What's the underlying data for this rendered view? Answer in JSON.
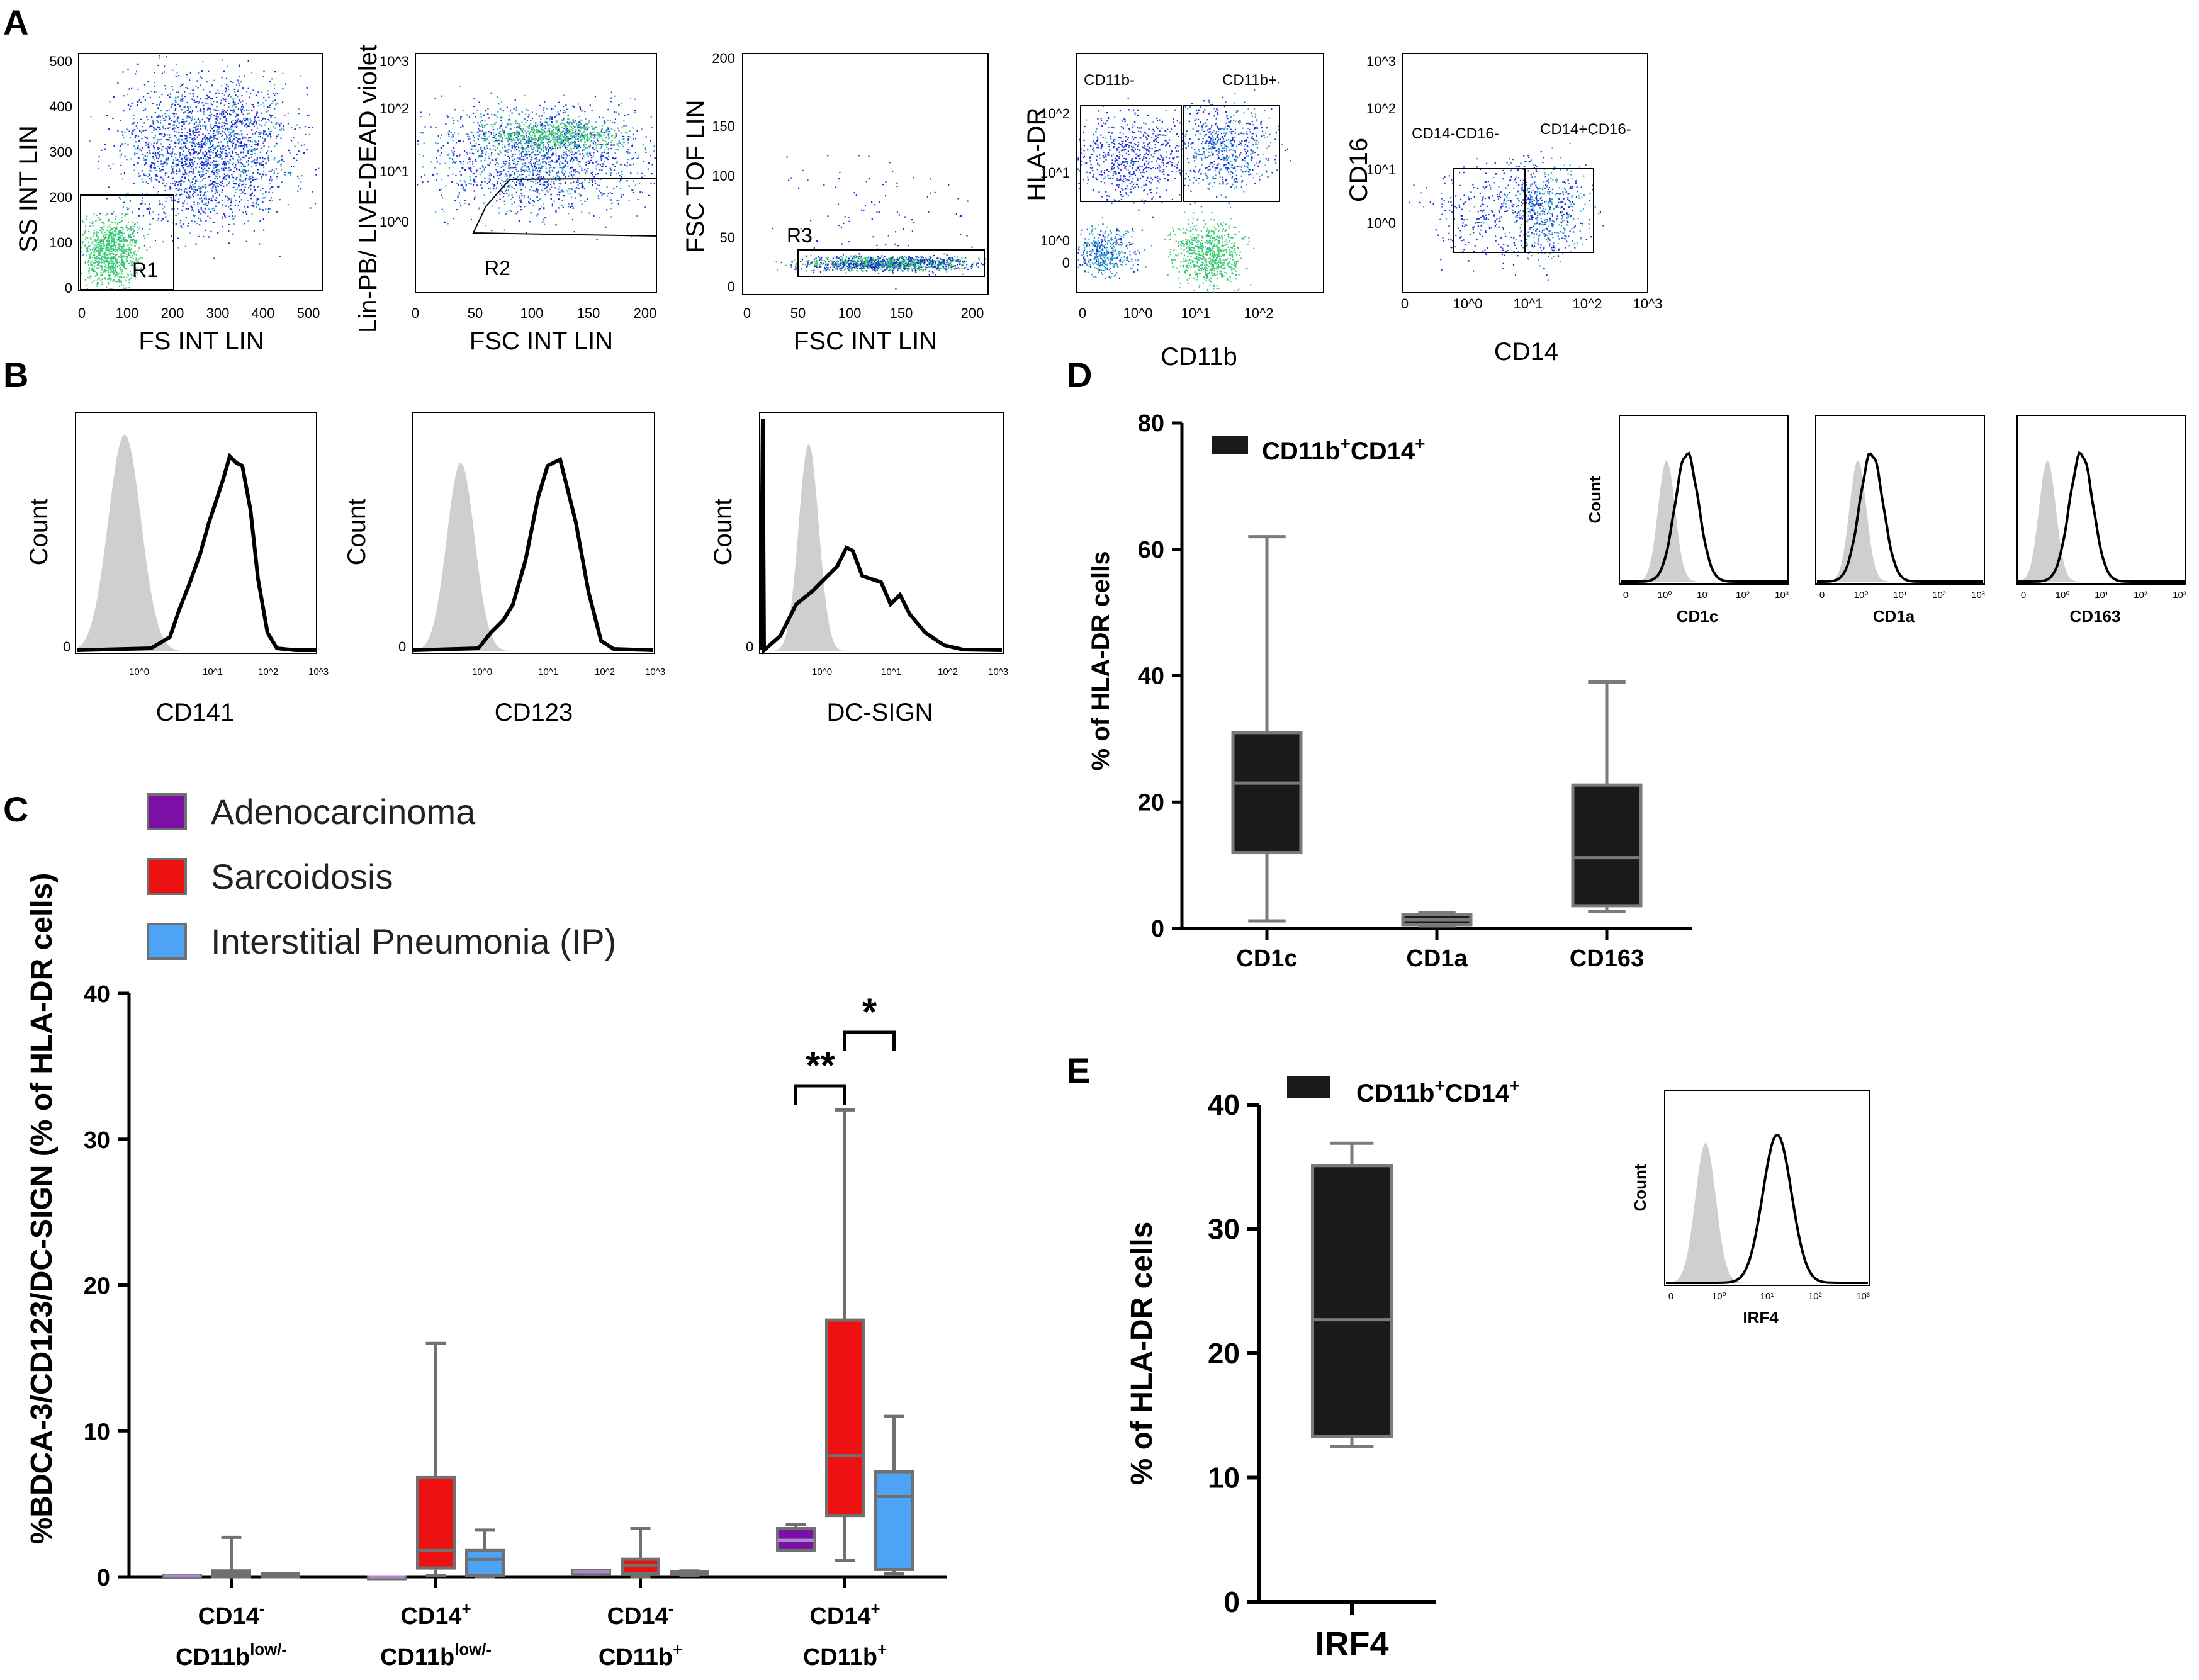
{
  "panel_labels": {
    "a": "A",
    "b": "B",
    "c": "C",
    "d": "D",
    "e": "E"
  },
  "panel_a": {
    "plots": [
      {
        "ylabel": "SS INT LIN",
        "xlabel": "FS INT LIN",
        "xticks": [
          "0",
          "100",
          "200",
          "300",
          "400",
          "500"
        ],
        "yticks": [
          "0",
          "100",
          "200",
          "300",
          "400",
          "500"
        ],
        "gates": [
          "R1"
        ]
      },
      {
        "ylabel": "Lin-PB/ LIVE-DEAD violet",
        "xlabel": "FSC INT LIN",
        "xticks": [
          "0",
          "50",
          "100",
          "150",
          "200"
        ],
        "yticks": [
          "10^3",
          "10^2",
          "10^1",
          "10^0"
        ],
        "gates": [
          "R2"
        ]
      },
      {
        "ylabel": "FSC TOF LIN",
        "xlabel": "FSC INT LIN",
        "xticks": [
          "0",
          "50",
          "100",
          "150",
          "200"
        ],
        "yticks": [
          "200",
          "150",
          "100",
          "50",
          "0"
        ],
        "gates": [
          "R3"
        ]
      },
      {
        "ylabel": "HLA-DR",
        "xlabel": "CD11b",
        "xticks": [
          "0",
          "10^0",
          "10^1",
          "10^2"
        ],
        "yticks": [
          "10^2",
          "10^1",
          "10^0",
          "0"
        ],
        "gates": [
          "CD11b-",
          "CD11b+"
        ]
      },
      {
        "ylabel": "CD16",
        "xlabel": "CD14",
        "xticks": [
          "0",
          "10^0",
          "10^1",
          "10^2",
          "10^3"
        ],
        "yticks": [
          "10^3",
          "10^2",
          "10^1",
          "10^0"
        ],
        "gates": [
          "CD14-CD16-",
          "CD14+CD16-"
        ]
      }
    ]
  },
  "panel_b": {
    "ylabel": "Count",
    "zero_tick": "0",
    "xticks": [
      "10^0",
      "10^1",
      "10^2",
      "10^3"
    ],
    "plots": [
      {
        "marker": "CD141"
      },
      {
        "marker": "CD123"
      },
      {
        "marker": "DC-SIGN"
      }
    ]
  },
  "chart_data": [
    {
      "panel": "C",
      "type": "box",
      "ylabel": "%BDCA-3/CD123/DC-SIGN (% of HLA-DR cells)",
      "ylim": [
        0,
        40
      ],
      "yticks": [
        "0",
        "10",
        "20",
        "30",
        "40"
      ],
      "legend": [
        {
          "name": "Adenocarcinoma",
          "color": "#7b0fa6"
        },
        {
          "name": "Sarcoidosis",
          "color": "#ee1111"
        },
        {
          "name": "Interstitial Pneumonia (IP)",
          "color": "#4da3f5"
        }
      ],
      "categories": [
        {
          "line1": "CD14",
          "sup1": "-",
          "line2": "CD11b",
          "sup2": "low/-"
        },
        {
          "line1": "CD14",
          "sup1": "+",
          "line2": "CD11b",
          "sup2": "low/-"
        },
        {
          "line1": "CD14",
          "sup1": "-",
          "line2": "CD11b",
          "sup2": "+"
        },
        {
          "line1": "CD14",
          "sup1": "+",
          "line2": "CD11b",
          "sup2": "+"
        }
      ],
      "boxes": [
        {
          "cat": 0,
          "group": "Adenocarcinoma",
          "min": 0,
          "q1": 0,
          "median": 0.05,
          "q3": 0.1,
          "max": 0.1
        },
        {
          "cat": 0,
          "group": "Sarcoidosis",
          "min": 0,
          "q1": 0,
          "median": 0.2,
          "q3": 0.4,
          "max": 2.7
        },
        {
          "cat": 0,
          "group": "Interstitial Pneumonia (IP)",
          "min": 0,
          "q1": 0,
          "median": 0.1,
          "q3": 0.2,
          "max": 0.2
        },
        {
          "cat": 1,
          "group": "Adenocarcinoma",
          "min": 0,
          "q1": 0,
          "median": 0,
          "q3": 0,
          "max": 0
        },
        {
          "cat": 1,
          "group": "Sarcoidosis",
          "min": 0.1,
          "q1": 0.6,
          "median": 1.8,
          "q3": 6.8,
          "max": 16
        },
        {
          "cat": 1,
          "group": "Interstitial Pneumonia (IP)",
          "min": 0,
          "q1": 0.1,
          "median": 1.2,
          "q3": 1.8,
          "max": 3.2
        },
        {
          "cat": 2,
          "group": "Adenocarcinoma",
          "min": 0.2,
          "q1": 0.2,
          "median": 0.35,
          "q3": 0.45,
          "max": 0.45
        },
        {
          "cat": 2,
          "group": "Sarcoidosis",
          "min": 0,
          "q1": 0.2,
          "median": 0.8,
          "q3": 1.2,
          "max": 3.3
        },
        {
          "cat": 2,
          "group": "Interstitial Pneumonia (IP)",
          "min": 0.1,
          "q1": 0.2,
          "median": 0.3,
          "q3": 0.35,
          "max": 0.4
        },
        {
          "cat": 3,
          "group": "Adenocarcinoma",
          "min": 1.8,
          "q1": 1.8,
          "median": 2.5,
          "q3": 3.3,
          "max": 3.6
        },
        {
          "cat": 3,
          "group": "Sarcoidosis",
          "min": 1.1,
          "q1": 4.2,
          "median": 8.3,
          "q3": 17.6,
          "max": 32
        },
        {
          "cat": 3,
          "group": "Interstitial Pneumonia (IP)",
          "min": 0.2,
          "q1": 0.5,
          "median": 5.5,
          "q3": 7.2,
          "max": 11
        }
      ],
      "significance": [
        {
          "label": "**",
          "between": [
            "Adenocarcinoma",
            "Sarcoidosis"
          ],
          "cat": 3
        },
        {
          "label": "*",
          "between": [
            "Sarcoidosis",
            "Interstitial Pneumonia (IP)"
          ],
          "cat": 3
        }
      ]
    },
    {
      "panel": "D",
      "type": "box",
      "ylabel": "% of HLA-DR cells",
      "ylim": [
        0,
        80
      ],
      "yticks": [
        "0",
        "20",
        "40",
        "60",
        "80"
      ],
      "legend": {
        "base": "CD11b",
        "sup1": "+",
        "mid": "CD14",
        "sup2": "+",
        "color": "#1a1a1a"
      },
      "categories": [
        "CD1c",
        "CD1a",
        "CD163"
      ],
      "boxes": [
        {
          "cat": 0,
          "min": 1.2,
          "q1": 12,
          "median": 23,
          "q3": 31,
          "max": 62
        },
        {
          "cat": 1,
          "min": 0.4,
          "q1": 0.6,
          "median": 1.4,
          "q3": 2.2,
          "max": 2.5
        },
        {
          "cat": 2,
          "min": 2.7,
          "q1": 3.6,
          "median": 11.2,
          "q3": 22.7,
          "max": 39
        }
      ],
      "insets": [
        {
          "marker": "CD1c",
          "ylabel": "Count"
        },
        {
          "marker": "CD1a",
          "ylabel": ""
        },
        {
          "marker": "CD163",
          "ylabel": ""
        }
      ]
    },
    {
      "panel": "E",
      "type": "box",
      "ylabel": "% of HLA-DR cells",
      "ylim": [
        0,
        40
      ],
      "yticks": [
        "0",
        "10",
        "20",
        "30",
        "40"
      ],
      "legend": {
        "base": "CD11b",
        "sup1": "+",
        "mid": "CD14",
        "sup2": "+",
        "color": "#1a1a1a"
      },
      "categories": [
        "IRF4"
      ],
      "boxes": [
        {
          "cat": 0,
          "min": 12.5,
          "q1": 13.3,
          "median": 22.7,
          "q3": 35.1,
          "max": 36.9
        }
      ],
      "insets": [
        {
          "marker": "IRF4",
          "ylabel": "Count"
        }
      ]
    }
  ]
}
